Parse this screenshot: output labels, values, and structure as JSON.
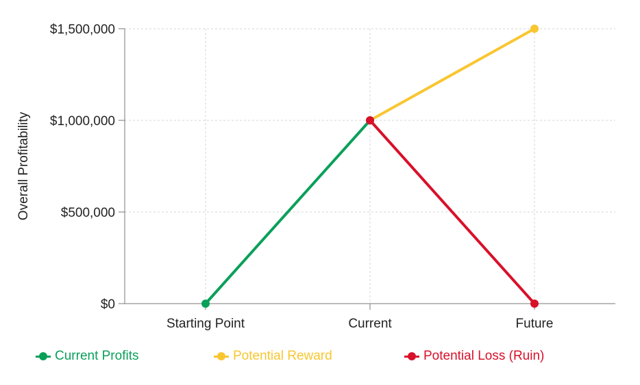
{
  "chart_data": {
    "type": "line",
    "categories": [
      "Starting Point",
      "Current",
      "Future"
    ],
    "ylabel": "Overall Profitability",
    "xlabel": "",
    "ylim": [
      0,
      1500000
    ],
    "y_ticks": [
      {
        "value": 0,
        "label": "$0"
      },
      {
        "value": 500000,
        "label": "$500,000"
      },
      {
        "value": 1000000,
        "label": "$1,000,000"
      },
      {
        "value": 1500000,
        "label": "$1,500,000"
      }
    ],
    "grid": true,
    "legend_position": "bottom",
    "series": [
      {
        "name": "Current Profits",
        "color": "#0aa05a",
        "points": [
          {
            "x": "Starting Point",
            "y": 0
          },
          {
            "x": "Current",
            "y": 1000000
          }
        ]
      },
      {
        "name": "Potential Reward",
        "color": "#f8c630",
        "points": [
          {
            "x": "Current",
            "y": 1000000
          },
          {
            "x": "Future",
            "y": 1500000
          }
        ]
      },
      {
        "name": "Potential Loss (Ruin)",
        "color": "#d8102a",
        "points": [
          {
            "x": "Current",
            "y": 1000000
          },
          {
            "x": "Future",
            "y": 0
          }
        ]
      }
    ]
  }
}
